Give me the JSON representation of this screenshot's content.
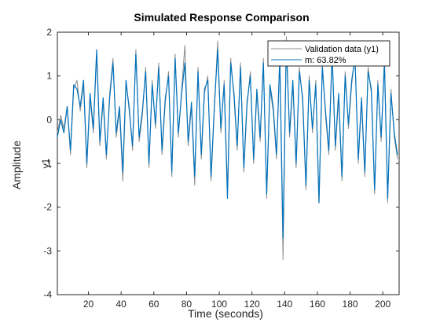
{
  "chart_data": {
    "type": "line",
    "title": "Simulated Response Comparison",
    "xlabel": "Time (seconds)",
    "ylabel": "Amplitude",
    "channel_label": "y1",
    "xlim": [
      1,
      210
    ],
    "ylim": [
      -4,
      2
    ],
    "xticks": [
      20,
      40,
      60,
      80,
      100,
      120,
      140,
      160,
      180,
      200
    ],
    "yticks": [
      -4,
      -3,
      -2,
      -1,
      0,
      1,
      2
    ],
    "grid": false,
    "legend_position": "top-right",
    "colors": {
      "validation": "#8c8c8c",
      "model": "#0072bd"
    },
    "series": [
      {
        "name": "Validation data (y1)",
        "x": [
          1,
          3,
          5,
          7,
          9,
          11,
          13,
          15,
          17,
          19,
          21,
          23,
          25,
          27,
          29,
          31,
          33,
          35,
          37,
          39,
          41,
          43,
          45,
          47,
          49,
          51,
          53,
          55,
          57,
          59,
          61,
          63,
          65,
          67,
          69,
          71,
          73,
          75,
          77,
          79,
          81,
          83,
          85,
          87,
          89,
          91,
          93,
          95,
          97,
          99,
          101,
          103,
          105,
          107,
          109,
          111,
          113,
          115,
          117,
          119,
          121,
          123,
          125,
          127,
          129,
          131,
          133,
          135,
          137,
          139,
          141,
          143,
          145,
          147,
          149,
          151,
          153,
          155,
          157,
          159,
          161,
          163,
          165,
          167,
          169,
          171,
          173,
          175,
          177,
          179,
          181,
          183,
          185,
          187,
          189,
          191,
          193,
          195,
          197,
          199,
          201,
          203,
          205,
          207,
          209
        ],
        "values": [
          -0.3,
          0.1,
          -0.2,
          0.3,
          -0.8,
          0.7,
          0.9,
          0.2,
          0.8,
          -1.1,
          0.5,
          -0.3,
          1.5,
          -0.6,
          0.4,
          -0.9,
          0.6,
          1.4,
          -0.4,
          0.2,
          -1.4,
          0.8,
          0.3,
          -0.7,
          1.6,
          -0.5,
          0.1,
          1.2,
          -1.1,
          0.9,
          -0.2,
          1.3,
          -0.8,
          0.4,
          1.1,
          -1.3,
          1.5,
          -0.4,
          0.7,
          1.7,
          -0.6,
          0.3,
          -1.5,
          1.2,
          -0.9,
          0.6,
          1.0,
          -1.4,
          0.2,
          1.8,
          -0.3,
          0.9,
          -1.6,
          1.4,
          0.5,
          -0.7,
          1.3,
          -1.2,
          0.3,
          1.1,
          -1.0,
          0.6,
          -0.5,
          1.4,
          -1.8,
          0.7,
          0.2,
          -0.9,
          1.5,
          -3.2,
          1.9,
          -0.4,
          0.8,
          -1.1,
          1.2,
          0.4,
          -1.6,
          1.0,
          -0.3,
          0.9,
          -1.9,
          1.3,
          0.1,
          -0.8,
          1.6,
          -0.7,
          0.5,
          -1.4,
          1.1,
          -0.2,
          0.8,
          1.5,
          -1.0,
          0.4,
          -1.3,
          1.2,
          0.6,
          -1.7,
          0.9,
          -0.5,
          1.4,
          -1.9,
          0.7,
          -0.4,
          -0.9
        ]
      },
      {
        "name": "m: 63.82%",
        "x": [
          1,
          3,
          5,
          7,
          9,
          11,
          13,
          15,
          17,
          19,
          21,
          23,
          25,
          27,
          29,
          31,
          33,
          35,
          37,
          39,
          41,
          43,
          45,
          47,
          49,
          51,
          53,
          55,
          57,
          59,
          61,
          63,
          65,
          67,
          69,
          71,
          73,
          75,
          77,
          79,
          81,
          83,
          85,
          87,
          89,
          91,
          93,
          95,
          97,
          99,
          101,
          103,
          105,
          107,
          109,
          111,
          113,
          115,
          117,
          119,
          121,
          123,
          125,
          127,
          129,
          131,
          133,
          135,
          137,
          139,
          141,
          143,
          145,
          147,
          149,
          151,
          153,
          155,
          157,
          159,
          161,
          163,
          165,
          167,
          169,
          171,
          173,
          175,
          177,
          179,
          181,
          183,
          185,
          187,
          189,
          191,
          193,
          195,
          197,
          199,
          201,
          203,
          205,
          207,
          209
        ],
        "values": [
          -0.4,
          0.0,
          -0.3,
          0.3,
          -0.7,
          0.8,
          0.7,
          0.3,
          0.9,
          -1.0,
          0.6,
          -0.2,
          1.6,
          -0.5,
          0.5,
          -0.8,
          0.5,
          1.3,
          -0.3,
          0.3,
          -1.2,
          0.9,
          0.2,
          -0.6,
          1.5,
          -0.4,
          0.2,
          1.1,
          -1.0,
          0.8,
          -0.1,
          1.2,
          -0.7,
          0.5,
          1.0,
          -1.2,
          1.4,
          -0.3,
          0.6,
          1.3,
          -0.5,
          0.4,
          -1.3,
          1.1,
          -0.8,
          0.7,
          0.9,
          -1.3,
          0.3,
          1.6,
          -0.2,
          0.8,
          -1.8,
          1.3,
          0.6,
          -0.6,
          1.2,
          -1.1,
          0.4,
          1.0,
          -0.9,
          0.7,
          -0.4,
          1.3,
          -1.7,
          0.8,
          0.3,
          -0.8,
          1.4,
          -2.7,
          1.7,
          -0.3,
          0.9,
          -1.0,
          1.1,
          0.5,
          -1.5,
          0.9,
          -0.2,
          0.8,
          -1.9,
          1.2,
          0.2,
          -0.7,
          1.5,
          -0.6,
          0.6,
          -1.3,
          1.0,
          -0.1,
          0.9,
          1.4,
          -0.9,
          0.5,
          -1.2,
          1.1,
          0.7,
          -1.6,
          0.8,
          -0.4,
          1.3,
          -1.8,
          0.6,
          -0.3,
          -0.8
        ]
      }
    ]
  }
}
